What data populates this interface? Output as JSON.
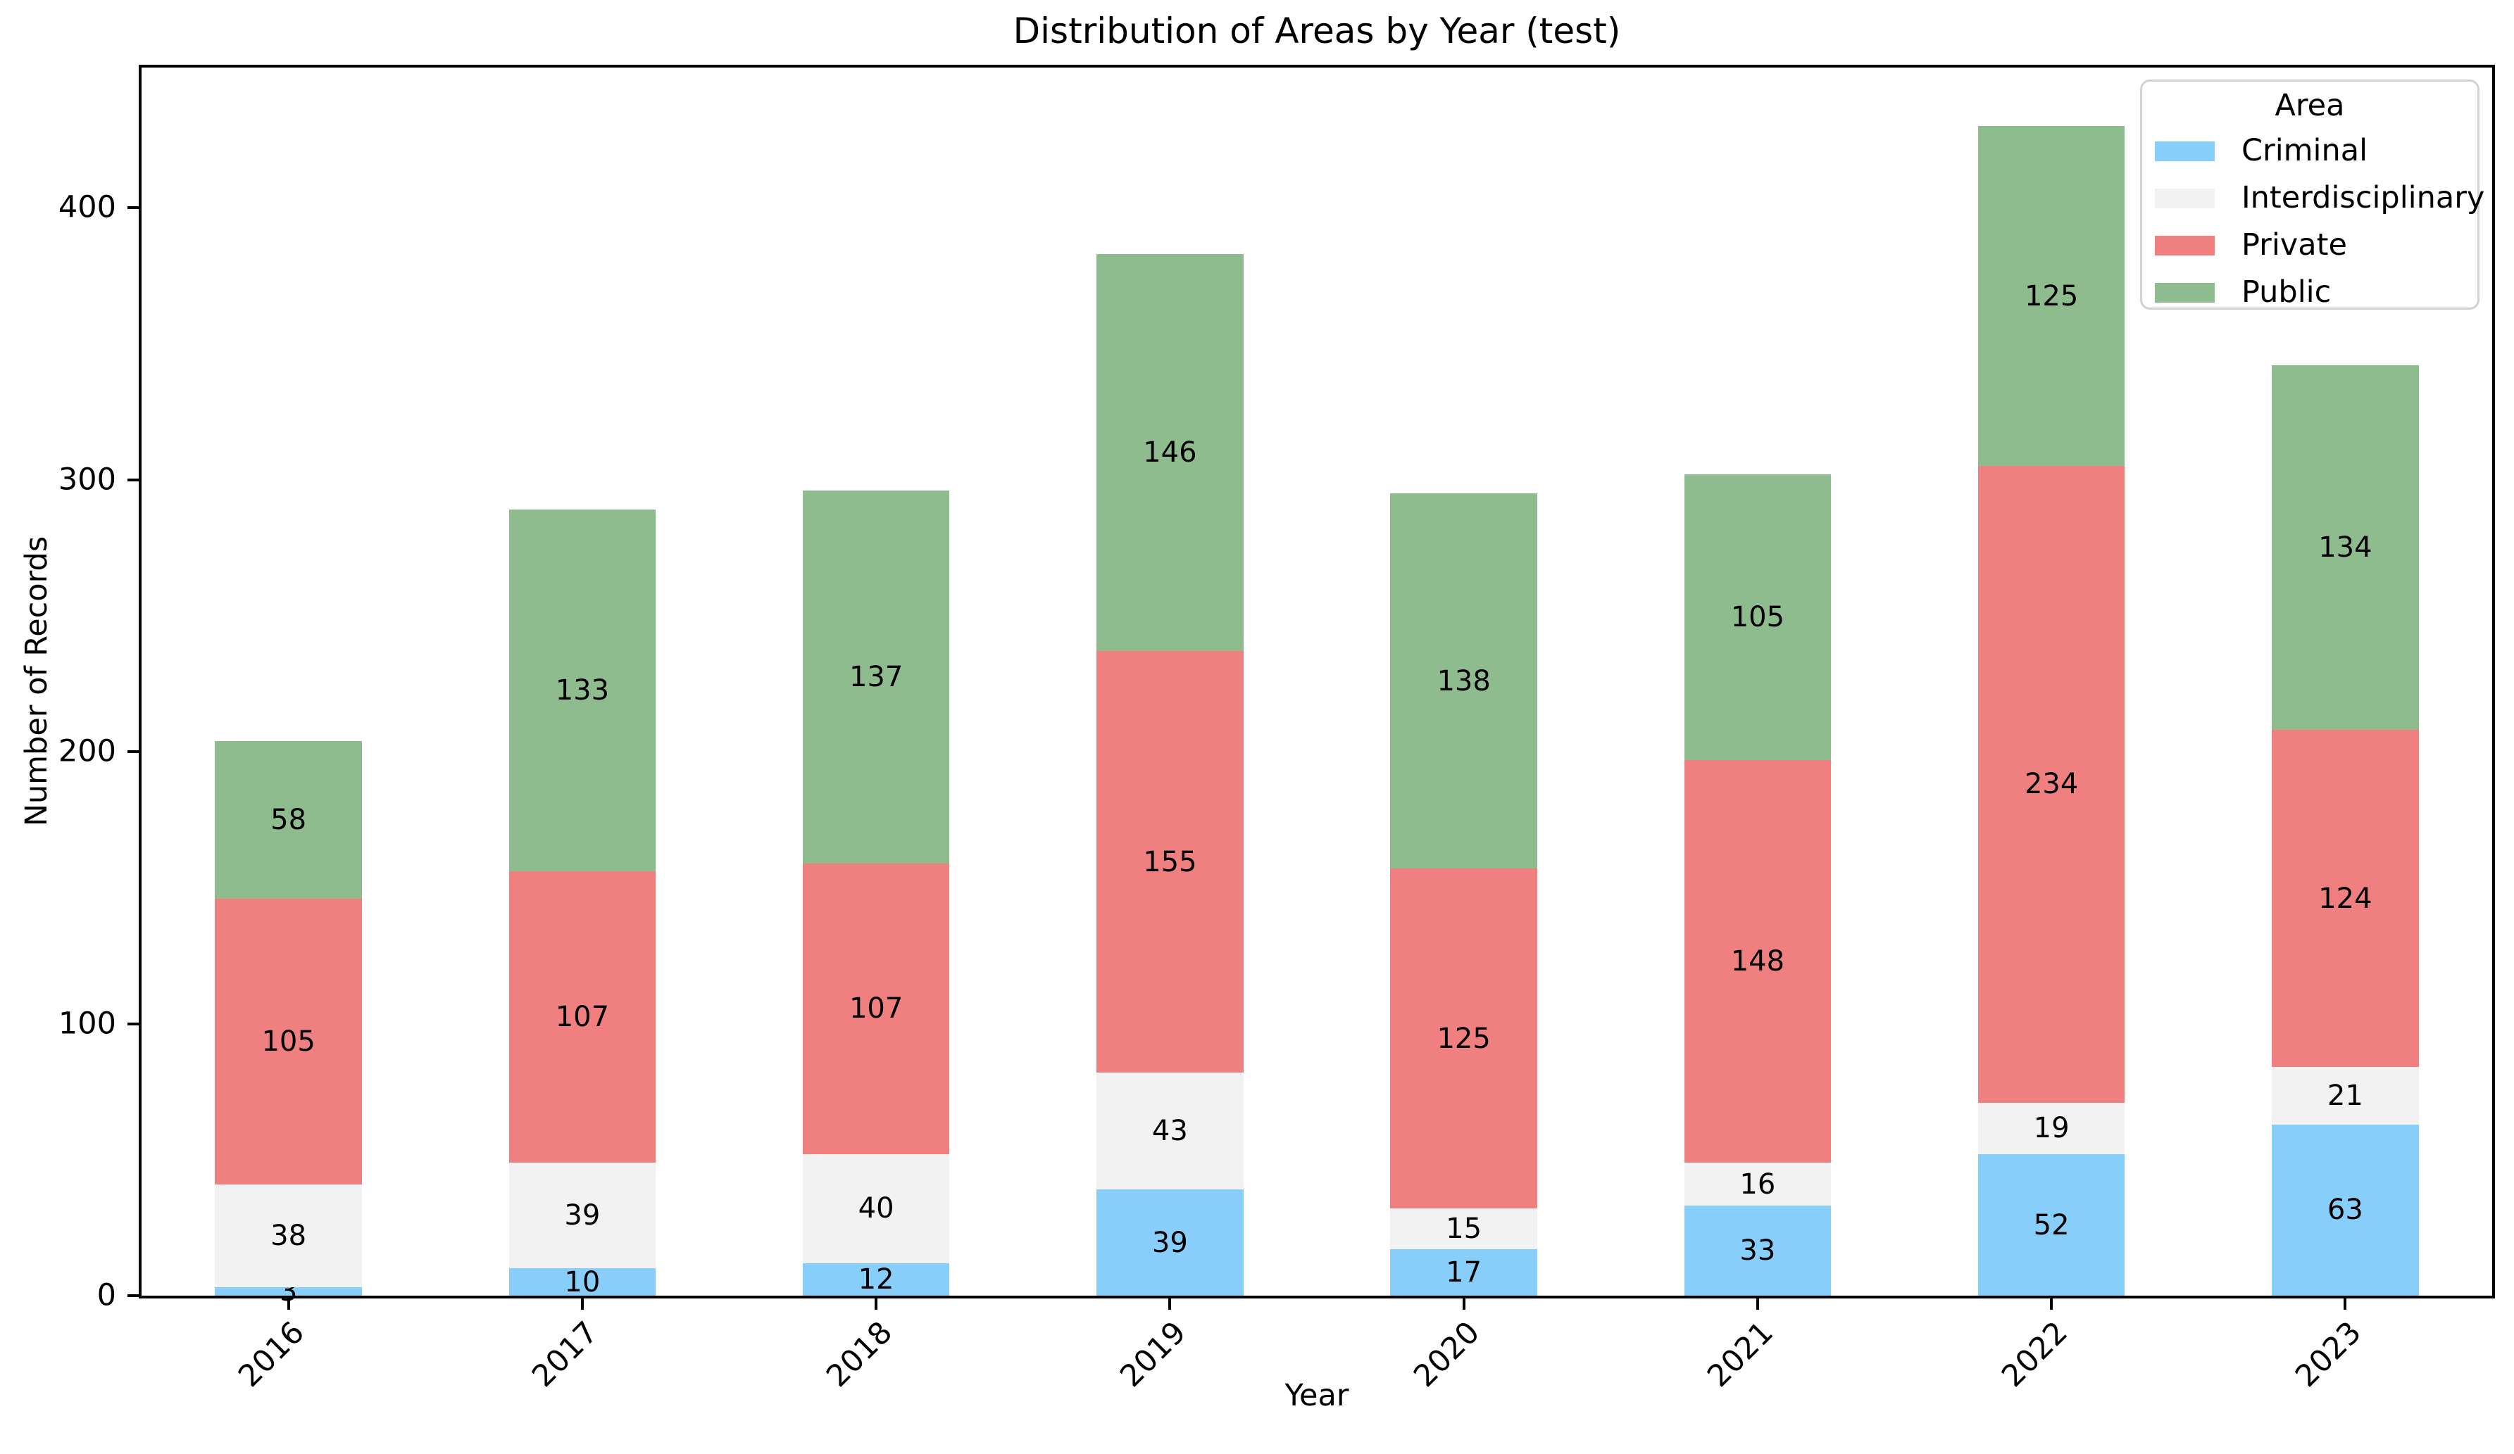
{
  "figure": {
    "title": "Distribution of Areas by Year (test)",
    "xlabel": "Year",
    "ylabel": "Number of Records"
  },
  "legend": {
    "title": "Area",
    "entries": [
      {
        "label": "Criminal",
        "color": "#87CEFA"
      },
      {
        "label": "Interdisciplinary",
        "color": "#F2F2F2"
      },
      {
        "label": "Private",
        "color": "#F08080"
      },
      {
        "label": "Public",
        "color": "#8FBC8F"
      }
    ]
  },
  "chart_data": {
    "type": "bar",
    "stacked": true,
    "title": "Distribution of Areas by Year (test)",
    "xlabel": "Year",
    "ylabel": "Number of Records",
    "categories": [
      "2016",
      "2017",
      "2018",
      "2019",
      "2020",
      "2021",
      "2022",
      "2023"
    ],
    "series": [
      {
        "name": "Criminal",
        "color": "#87CEFA",
        "values": [
          3,
          10,
          12,
          39,
          17,
          33,
          52,
          63
        ]
      },
      {
        "name": "Interdisciplinary",
        "color": "#F2F2F2",
        "values": [
          38,
          39,
          40,
          43,
          15,
          16,
          19,
          21
        ]
      },
      {
        "name": "Private",
        "color": "#F08080",
        "values": [
          105,
          107,
          107,
          155,
          125,
          148,
          234,
          124
        ]
      },
      {
        "name": "Public",
        "color": "#8FBC8F",
        "values": [
          58,
          133,
          137,
          146,
          138,
          105,
          125,
          134
        ]
      }
    ],
    "totals": [
      204,
      289,
      296,
      383,
      295,
      302,
      430,
      342
    ],
    "ylim": [
      0,
      451.5
    ],
    "yticks": [
      0,
      100,
      200,
      300,
      400
    ],
    "bar_width_fraction": 0.5,
    "bar_labels": "center",
    "xtick_rotation_deg": 45,
    "grid": false,
    "legend_position": "upper right",
    "colors": {
      "spine": "#000000",
      "text": "#000000",
      "legend_border": "#d2d2d2",
      "background": "#ffffff"
    }
  }
}
